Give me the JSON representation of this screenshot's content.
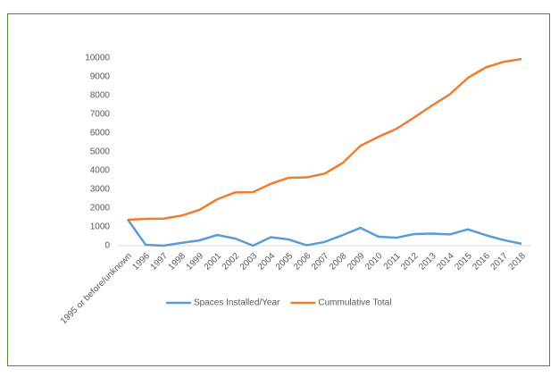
{
  "chart_data": {
    "type": "line",
    "categories": [
      "1995 or before/unknown",
      "1996",
      "1997",
      "1998",
      "1999",
      "2001",
      "2002",
      "2003",
      "2004",
      "2005",
      "2006",
      "2007",
      "2008",
      "2009",
      "2010",
      "2011",
      "2012",
      "2013",
      "2014",
      "2015",
      "2016",
      "2017",
      "2018"
    ],
    "series": [
      {
        "name": "Spaces Installed/Year",
        "color": "#5b9bd5",
        "values": [
          1400,
          50,
          0,
          150,
          280,
          570,
          380,
          0,
          450,
          330,
          20,
          200,
          560,
          950,
          480,
          420,
          620,
          640,
          600,
          870,
          560,
          300,
          100
        ]
      },
      {
        "name": "Cummulative Total",
        "color": "#ed7d31",
        "values": [
          1380,
          1430,
          1440,
          1600,
          1900,
          2470,
          2840,
          2850,
          3300,
          3620,
          3640,
          3840,
          4400,
          5320,
          5800,
          6220,
          6830,
          7470,
          8070,
          8940,
          9500,
          9800,
          9950
        ]
      }
    ],
    "ylim": [
      0,
      10000
    ],
    "yticks": [
      0,
      1000,
      2000,
      3000,
      4000,
      5000,
      6000,
      7000,
      8000,
      9000,
      10000
    ],
    "grid": false,
    "legend": "bottom"
  }
}
